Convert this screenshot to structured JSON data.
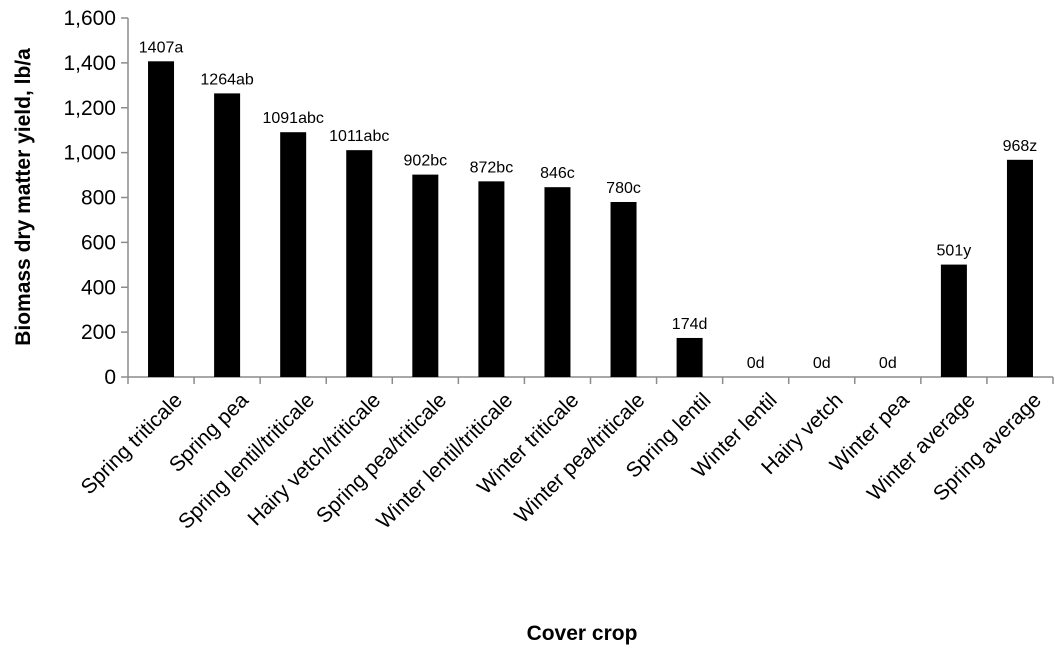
{
  "chart_data": {
    "type": "bar",
    "xlabel": "Cover crop",
    "ylabel": "Biomass dry matter yield, lb/a",
    "ylim": [
      0,
      1600
    ],
    "yticks": [
      0,
      200,
      400,
      600,
      800,
      1000,
      1200,
      1400,
      1600
    ],
    "ytick_labels": [
      "0",
      "200",
      "400",
      "600",
      "800",
      "1,000",
      "1,200",
      "1,400",
      "1,600"
    ],
    "categories": [
      "Spring triticale",
      "Spring pea",
      "Spring lentil/triticale",
      "Hairy vetch/triticale",
      "Spring pea/triticale",
      "Winter lentil/triticale",
      "Winter triticale",
      "Winter pea/triticale",
      "Spring lentil",
      "Winter lentil",
      "Hairy vetch",
      "Winter pea",
      "Winter average",
      "Spring average"
    ],
    "values": [
      1407,
      1264,
      1091,
      1011,
      902,
      872,
      846,
      780,
      174,
      0,
      0,
      0,
      501,
      968
    ],
    "data_labels": [
      "1407a",
      "1264ab",
      "1091abc",
      "1011abc",
      "902bc",
      "872bc",
      "846c",
      "780c",
      "174d",
      "0d",
      "0d",
      "0d",
      "501y",
      "968z"
    ],
    "bar_color": "#000000",
    "grid": false,
    "legend": "none"
  }
}
